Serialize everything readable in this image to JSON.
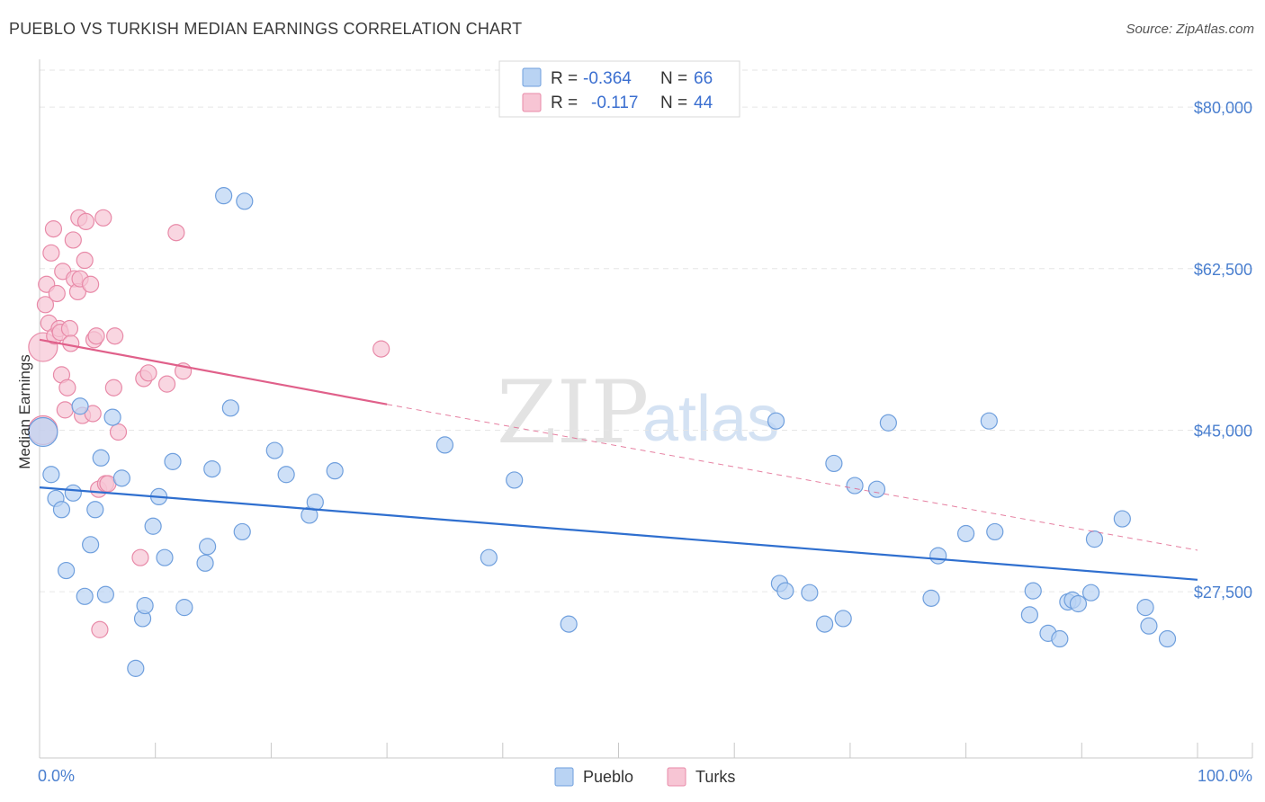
{
  "title": "PUEBLO VS TURKISH MEDIAN EARNINGS CORRELATION CHART",
  "source": "Source: ZipAtlas.com",
  "watermark": {
    "zip": "ZIP",
    "atlas": "atlas"
  },
  "colors": {
    "pueblo_fill": "#b9d3f3",
    "pueblo_stroke": "#6f9fdd",
    "pueblo_line": "#2f6fcf",
    "turks_fill": "#f7c5d4",
    "turks_stroke": "#e88aa8",
    "turks_line": "#e0608a",
    "grid": "#e6e6e6",
    "axis_text": "#4a7fcf"
  },
  "legend": {
    "rows": [
      {
        "r_label": "R =",
        "r_value": "-0.364",
        "n_label": "N =",
        "n_value": "66"
      },
      {
        "r_label": "R =",
        "r_value": "-0.117",
        "n_label": "N =",
        "n_value": "44"
      }
    ]
  },
  "chart_data": {
    "type": "scatter",
    "title": "PUEBLO VS TURKISH MEDIAN EARNINGS CORRELATION CHART",
    "xlabel": "",
    "ylabel": "Median Earnings",
    "xlim": [
      0,
      100
    ],
    "ylim": [
      9500,
      84000
    ],
    "x_tick_labels": [
      "0.0%",
      "100.0%"
    ],
    "y_ticks": [
      27500,
      45000,
      62500,
      80000
    ],
    "y_tick_labels": [
      "$27,500",
      "$45,000",
      "$62,500",
      "$80,000"
    ],
    "legend_position": "top-center",
    "series": [
      {
        "name": "Pueblo",
        "r": -0.364,
        "n": 66,
        "trend": {
          "x": [
            0,
            100
          ],
          "y": [
            38800,
            28800
          ]
        },
        "points": [
          [
            0.3,
            44800
          ],
          [
            1.0,
            40200
          ],
          [
            1.4,
            37600
          ],
          [
            1.9,
            36400
          ],
          [
            2.3,
            29800
          ],
          [
            2.9,
            38200
          ],
          [
            3.5,
            47600
          ],
          [
            3.9,
            27000
          ],
          [
            4.4,
            32600
          ],
          [
            4.8,
            36400
          ],
          [
            5.3,
            42000
          ],
          [
            5.7,
            27200
          ],
          [
            6.3,
            46400
          ],
          [
            7.1,
            39800
          ],
          [
            8.3,
            19200
          ],
          [
            8.9,
            24600
          ],
          [
            9.1,
            26000
          ],
          [
            9.8,
            34600
          ],
          [
            10.3,
            37800
          ],
          [
            10.8,
            31200
          ],
          [
            11.5,
            41600
          ],
          [
            12.5,
            25800
          ],
          [
            14.3,
            30600
          ],
          [
            14.5,
            32400
          ],
          [
            14.9,
            40800
          ],
          [
            15.9,
            70400
          ],
          [
            16.5,
            47400
          ],
          [
            17.7,
            69800
          ],
          [
            17.5,
            34000
          ],
          [
            20.3,
            42800
          ],
          [
            21.3,
            40200
          ],
          [
            23.3,
            35800
          ],
          [
            23.8,
            37200
          ],
          [
            25.5,
            40600
          ],
          [
            35.0,
            43400
          ],
          [
            38.8,
            31200
          ],
          [
            41.0,
            39600
          ],
          [
            45.7,
            24000
          ],
          [
            63.6,
            46000
          ],
          [
            63.9,
            28400
          ],
          [
            64.4,
            27600
          ],
          [
            66.5,
            27400
          ],
          [
            67.8,
            24000
          ],
          [
            68.6,
            41400
          ],
          [
            69.4,
            24600
          ],
          [
            70.4,
            39000
          ],
          [
            72.3,
            38600
          ],
          [
            73.3,
            45800
          ],
          [
            77.0,
            26800
          ],
          [
            77.6,
            31400
          ],
          [
            80.0,
            33800
          ],
          [
            82.0,
            46000
          ],
          [
            82.5,
            34000
          ],
          [
            85.5,
            25000
          ],
          [
            85.8,
            27600
          ],
          [
            87.1,
            23000
          ],
          [
            88.1,
            22400
          ],
          [
            88.8,
            26400
          ],
          [
            89.2,
            26600
          ],
          [
            89.7,
            26200
          ],
          [
            90.8,
            27400
          ],
          [
            91.1,
            33200
          ],
          [
            93.5,
            35400
          ],
          [
            95.5,
            25800
          ],
          [
            95.8,
            23800
          ],
          [
            97.4,
            22400
          ]
        ]
      },
      {
        "name": "Turks",
        "r": -0.117,
        "n": 44,
        "trend": {
          "x": [
            0,
            30
          ],
          "y": [
            54800,
            47800
          ]
        },
        "trend_dashed": {
          "x": [
            30,
            100
          ],
          "y": [
            47800,
            32000
          ]
        },
        "points": [
          [
            0.3,
            45000
          ],
          [
            0.3,
            54000
          ],
          [
            0.5,
            58600
          ],
          [
            0.6,
            60800
          ],
          [
            0.8,
            56600
          ],
          [
            1.0,
            64200
          ],
          [
            1.2,
            66800
          ],
          [
            1.3,
            55200
          ],
          [
            1.5,
            59800
          ],
          [
            1.7,
            56000
          ],
          [
            1.8,
            55600
          ],
          [
            1.9,
            51000
          ],
          [
            2.0,
            62200
          ],
          [
            2.2,
            47200
          ],
          [
            2.4,
            49600
          ],
          [
            2.6,
            56000
          ],
          [
            2.7,
            54400
          ],
          [
            2.9,
            65600
          ],
          [
            3.0,
            61400
          ],
          [
            3.3,
            60000
          ],
          [
            3.4,
            68000
          ],
          [
            3.5,
            61400
          ],
          [
            3.7,
            46600
          ],
          [
            3.9,
            63400
          ],
          [
            4.0,
            67600
          ],
          [
            4.4,
            60800
          ],
          [
            4.6,
            46800
          ],
          [
            4.7,
            54800
          ],
          [
            4.9,
            55200
          ],
          [
            5.1,
            38600
          ],
          [
            5.5,
            68000
          ],
          [
            5.7,
            39200
          ],
          [
            5.9,
            39200
          ],
          [
            6.4,
            49600
          ],
          [
            6.5,
            55200
          ],
          [
            6.8,
            44800
          ],
          [
            8.7,
            31200
          ],
          [
            9.0,
            50600
          ],
          [
            9.4,
            51200
          ],
          [
            11.0,
            50000
          ],
          [
            12.4,
            51400
          ],
          [
            5.2,
            23400
          ],
          [
            11.8,
            66400
          ],
          [
            29.5,
            53800
          ]
        ]
      }
    ]
  }
}
